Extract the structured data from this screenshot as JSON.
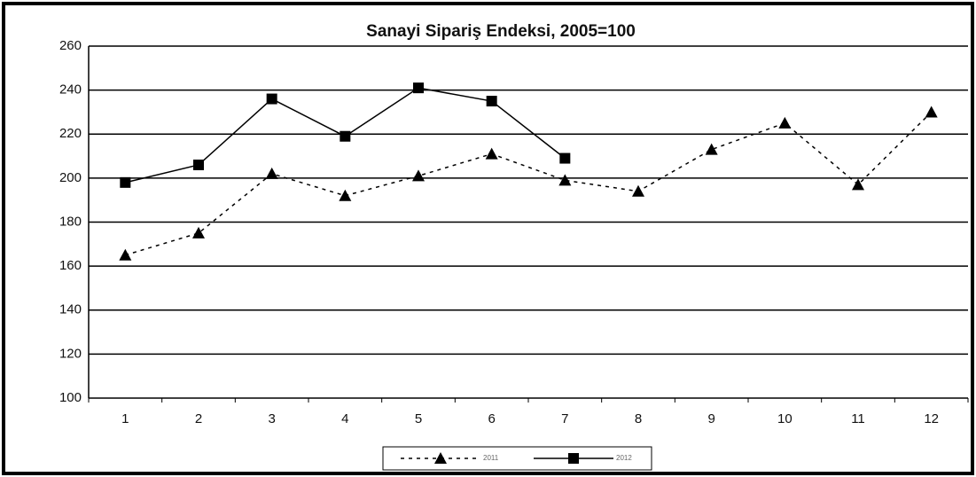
{
  "chart_data": {
    "type": "line",
    "title": "Sanayi Sipariş Endeksi, 2005=100",
    "categories": [
      "1",
      "2",
      "3",
      "4",
      "5",
      "6",
      "7",
      "8",
      "9",
      "10",
      "11",
      "12"
    ],
    "series": [
      {
        "name": "2011",
        "color": "#000000",
        "line_style": "dotted",
        "marker": "triangle",
        "values": [
          165,
          175,
          202,
          192,
          201,
          211,
          199,
          194,
          213,
          225,
          197,
          230
        ]
      },
      {
        "name": "2012",
        "color": "#000000",
        "line_style": "solid",
        "marker": "square",
        "values": [
          198,
          206,
          236,
          219,
          241,
          235,
          209,
          null,
          null,
          null,
          null,
          null
        ]
      }
    ],
    "ylim": [
      100,
      260
    ],
    "yticks": [
      100,
      120,
      140,
      160,
      180,
      200,
      220,
      240,
      260
    ],
    "grid": true,
    "legend": "bottom"
  }
}
